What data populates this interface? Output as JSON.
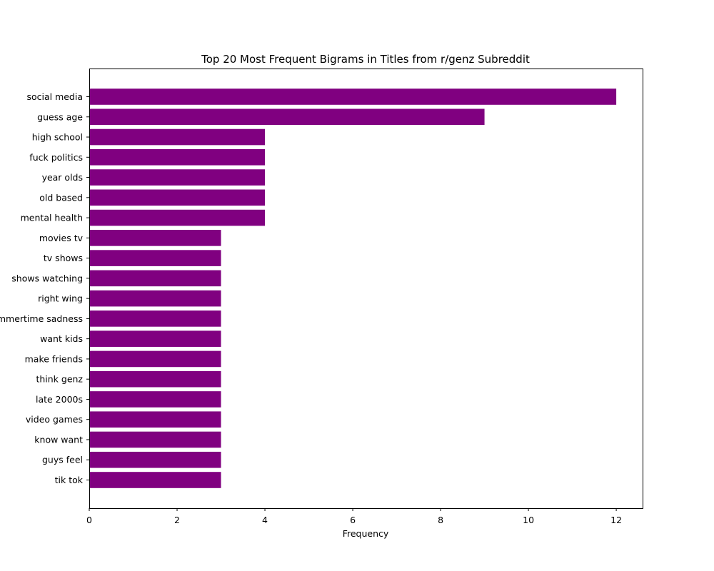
{
  "chart_data": {
    "type": "bar",
    "orientation": "horizontal",
    "title": "Top 20 Most Frequent Bigrams in Titles from r/genz Subreddit",
    "xlabel": "Frequency",
    "ylabel": "",
    "xlim": [
      0,
      12.6
    ],
    "xticks": [
      0,
      2,
      4,
      6,
      8,
      10,
      12
    ],
    "grid": false,
    "bar_color": "#800080",
    "categories": [
      "social media",
      "guess age",
      "high school",
      "fuck politics",
      "year olds",
      "old based",
      "mental health",
      "movies tv",
      "tv shows",
      "shows watching",
      "right wing",
      "summertime sadness",
      "want kids",
      "make friends",
      "think genz",
      "late 2000s",
      "video games",
      "know want",
      "guys feel",
      "tik tok"
    ],
    "values": [
      12,
      9,
      4,
      4,
      4,
      4,
      4,
      3,
      3,
      3,
      3,
      3,
      3,
      3,
      3,
      3,
      3,
      3,
      3,
      3
    ]
  }
}
